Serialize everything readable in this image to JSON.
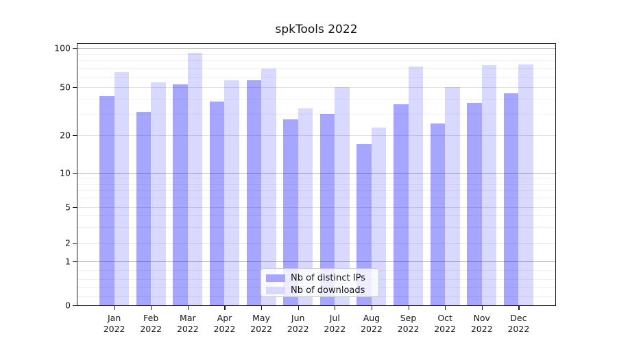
{
  "chart_data": {
    "type": "bar",
    "title": "spkTools 2022",
    "categories": [
      "Jan",
      "Feb",
      "Mar",
      "Apr",
      "May",
      "Jun",
      "Jul",
      "Aug",
      "Sep",
      "Oct",
      "Nov",
      "Dec"
    ],
    "year": "2022",
    "series": [
      {
        "name": "Nb of distinct IPs",
        "color": "rgba(0,0,255,0.35)",
        "legend_color": "#a6a6ff",
        "values": [
          42,
          31,
          52,
          38,
          56,
          27,
          30,
          17,
          36,
          25,
          37,
          44
        ]
      },
      {
        "name": "Nb of downloads",
        "color": "rgba(0,0,255,0.15)",
        "legend_color": "#d9d9ff",
        "values": [
          65,
          54,
          92,
          56,
          69,
          33,
          50,
          23,
          72,
          50,
          74,
          75
        ]
      }
    ],
    "y_ticks": [
      100,
      50,
      20,
      10,
      5,
      2,
      1,
      0
    ],
    "y_scale": "log-like (symlog)",
    "ylim": [
      0,
      110
    ],
    "grid": true,
    "legend_position": "lower center"
  }
}
